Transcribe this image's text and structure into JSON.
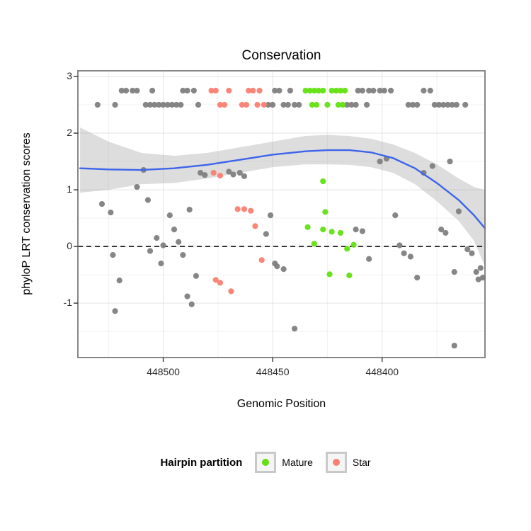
{
  "title": "Conservation",
  "axes": {
    "x_label": "Genomic Position",
    "y_label": "phyloP LRT conservation scores"
  },
  "legend": {
    "title": "Hairpin partition",
    "items": [
      {
        "label": "Mature",
        "color": "#62E010"
      },
      {
        "label": "Star",
        "color": "#FA8072"
      }
    ]
  },
  "chart_data": {
    "type": "scatter",
    "title": "Conservation",
    "xlabel": "Genomic Position",
    "ylabel": "phyloP LRT conservation scores",
    "x_axis": {
      "ticks": [
        448500,
        448450,
        448400
      ],
      "labels": [
        "448500",
        "448450",
        "448400"
      ],
      "domain": [
        448539,
        448353
      ],
      "reversed": true
    },
    "y_axis": {
      "ticks": [
        -1,
        0,
        1,
        2,
        3
      ],
      "labels": [
        "-1",
        "0",
        "1",
        "2",
        "3"
      ],
      "domain": [
        -1.96,
        3.1
      ]
    },
    "grid": {
      "major_color": "#E3E3E3",
      "minor_color": "#F1F1F1"
    },
    "panel": {
      "background": "#FFFFFF",
      "border_color": "#7A7A7A"
    },
    "reference_line": {
      "y": 0,
      "color": "#000000",
      "dash": "7 5"
    },
    "smooth": {
      "color": "#3D64EB",
      "ribbon_color": "#9E9E9E",
      "ribbon_opacity": 0.35,
      "x": [
        448538,
        448525,
        448510,
        448495,
        448480,
        448465,
        448450,
        448435,
        448425,
        448415,
        448405,
        448395,
        448385,
        448375,
        448365,
        448358,
        448353
      ],
      "y": [
        1.38,
        1.36,
        1.35,
        1.38,
        1.44,
        1.53,
        1.62,
        1.68,
        1.7,
        1.7,
        1.66,
        1.56,
        1.38,
        1.12,
        0.82,
        0.55,
        0.32
      ],
      "upper": [
        2.1,
        1.85,
        1.65,
        1.6,
        1.65,
        1.75,
        1.85,
        1.95,
        1.97,
        1.95,
        1.9,
        1.8,
        1.65,
        1.45,
        1.2,
        1.05,
        1.0
      ],
      "lower": [
        0.95,
        1.0,
        1.1,
        1.12,
        1.2,
        1.3,
        1.4,
        1.45,
        1.45,
        1.44,
        1.4,
        1.3,
        1.1,
        0.8,
        0.45,
        0.1,
        -0.35
      ]
    },
    "series": [
      {
        "name": "unlabeled",
        "color": "#7F7F7F",
        "points": [
          [
            448519,
            2.75
          ],
          [
            448517,
            2.75
          ],
          [
            448514,
            2.75
          ],
          [
            448512,
            2.75
          ],
          [
            448505,
            2.75
          ],
          [
            448491,
            2.75
          ],
          [
            448489,
            2.75
          ],
          [
            448486,
            2.75
          ],
          [
            448449,
            2.75
          ],
          [
            448447,
            2.75
          ],
          [
            448442,
            2.75
          ],
          [
            448411,
            2.75
          ],
          [
            448409,
            2.75
          ],
          [
            448406,
            2.75
          ],
          [
            448404,
            2.75
          ],
          [
            448401,
            2.75
          ],
          [
            448399,
            2.75
          ],
          [
            448396,
            2.75
          ],
          [
            448381,
            2.75
          ],
          [
            448378,
            2.75
          ],
          [
            448530,
            2.5
          ],
          [
            448522,
            2.5
          ],
          [
            448508,
            2.5
          ],
          [
            448506,
            2.5
          ],
          [
            448504,
            2.5
          ],
          [
            448502,
            2.5
          ],
          [
            448500,
            2.5
          ],
          [
            448498,
            2.5
          ],
          [
            448496,
            2.5
          ],
          [
            448494,
            2.5
          ],
          [
            448492,
            2.5
          ],
          [
            448484,
            2.5
          ],
          [
            448452,
            2.5
          ],
          [
            448450,
            2.5
          ],
          [
            448445,
            2.5
          ],
          [
            448443,
            2.5
          ],
          [
            448440,
            2.5
          ],
          [
            448438,
            2.5
          ],
          [
            448416,
            2.5
          ],
          [
            448414,
            2.5
          ],
          [
            448412,
            2.5
          ],
          [
            448407,
            2.5
          ],
          [
            448388,
            2.5
          ],
          [
            448386,
            2.5
          ],
          [
            448384,
            2.5
          ],
          [
            448376,
            2.5
          ],
          [
            448374,
            2.5
          ],
          [
            448372,
            2.5
          ],
          [
            448370,
            2.5
          ],
          [
            448368,
            2.5
          ],
          [
            448366,
            2.5
          ],
          [
            448362,
            2.5
          ],
          [
            448528,
            0.75
          ],
          [
            448524,
            0.6
          ],
          [
            448523,
            -0.15
          ],
          [
            448522,
            -1.14
          ],
          [
            448520,
            -0.6
          ],
          [
            448512,
            1.05
          ],
          [
            448509,
            1.35
          ],
          [
            448507,
            0.82
          ],
          [
            448506,
            -0.08
          ],
          [
            448503,
            0.15
          ],
          [
            448501,
            -0.3
          ],
          [
            448500,
            0.02
          ],
          [
            448497,
            0.55
          ],
          [
            448495,
            0.3
          ],
          [
            448493,
            0.08
          ],
          [
            448491,
            -0.15
          ],
          [
            448488,
            0.65
          ],
          [
            448489,
            -0.88
          ],
          [
            448487,
            -1.02
          ],
          [
            448485,
            -0.52
          ],
          [
            448483,
            1.3
          ],
          [
            448481,
            1.26
          ],
          [
            448470,
            1.32
          ],
          [
            448468,
            1.27
          ],
          [
            448465,
            1.3
          ],
          [
            448463,
            1.24
          ],
          [
            448453,
            0.22
          ],
          [
            448451,
            0.55
          ],
          [
            448449,
            -0.3
          ],
          [
            448448,
            -0.35
          ],
          [
            448445,
            -0.4
          ],
          [
            448440,
            -1.45
          ],
          [
            448412,
            0.3
          ],
          [
            448409,
            0.27
          ],
          [
            448406,
            -0.22
          ],
          [
            448401,
            1.5
          ],
          [
            448398,
            1.55
          ],
          [
            448394,
            0.55
          ],
          [
            448392,
            0.02
          ],
          [
            448390,
            -0.12
          ],
          [
            448387,
            -0.18
          ],
          [
            448384,
            -0.55
          ],
          [
            448381,
            1.3
          ],
          [
            448377,
            1.42
          ],
          [
            448373,
            0.3
          ],
          [
            448371,
            0.24
          ],
          [
            448369,
            1.5
          ],
          [
            448367,
            -0.45
          ],
          [
            448367,
            -1.75
          ],
          [
            448365,
            0.62
          ],
          [
            448361,
            -0.05
          ],
          [
            448359,
            -0.12
          ],
          [
            448357,
            -0.45
          ],
          [
            448356,
            -0.58
          ],
          [
            448355,
            -0.38
          ],
          [
            448354,
            -0.55
          ]
        ]
      },
      {
        "name": "Mature",
        "color": "#62E010",
        "points": [
          [
            448435,
            2.75
          ],
          [
            448433,
            2.75
          ],
          [
            448431,
            2.75
          ],
          [
            448429,
            2.75
          ],
          [
            448427,
            2.75
          ],
          [
            448423,
            2.75
          ],
          [
            448421,
            2.75
          ],
          [
            448419,
            2.75
          ],
          [
            448417,
            2.75
          ],
          [
            448432,
            2.5
          ],
          [
            448430,
            2.5
          ],
          [
            448425,
            2.5
          ],
          [
            448420,
            2.5
          ],
          [
            448418,
            2.5
          ],
          [
            448427,
            1.15
          ],
          [
            448426,
            0.61
          ],
          [
            448434,
            0.34
          ],
          [
            448427,
            0.3
          ],
          [
            448423,
            0.26
          ],
          [
            448419,
            0.24
          ],
          [
            448431,
            0.05
          ],
          [
            448416,
            -0.04
          ],
          [
            448413,
            0.03
          ],
          [
            448424,
            -0.49
          ],
          [
            448415,
            -0.51
          ]
        ]
      },
      {
        "name": "Star",
        "color": "#FA8072",
        "points": [
          [
            448478,
            2.75
          ],
          [
            448476,
            2.75
          ],
          [
            448470,
            2.75
          ],
          [
            448461,
            2.75
          ],
          [
            448459,
            2.75
          ],
          [
            448456,
            2.75
          ],
          [
            448474,
            2.5
          ],
          [
            448472,
            2.5
          ],
          [
            448464,
            2.5
          ],
          [
            448462,
            2.5
          ],
          [
            448457,
            2.5
          ],
          [
            448454,
            2.5
          ],
          [
            448477,
            1.3
          ],
          [
            448474,
            1.25
          ],
          [
            448466,
            0.66
          ],
          [
            448463,
            0.66
          ],
          [
            448460,
            0.63
          ],
          [
            448458,
            0.36
          ],
          [
            448455,
            -0.24
          ],
          [
            448476,
            -0.59
          ],
          [
            448474,
            -0.64
          ],
          [
            448469,
            -0.79
          ]
        ]
      }
    ]
  }
}
